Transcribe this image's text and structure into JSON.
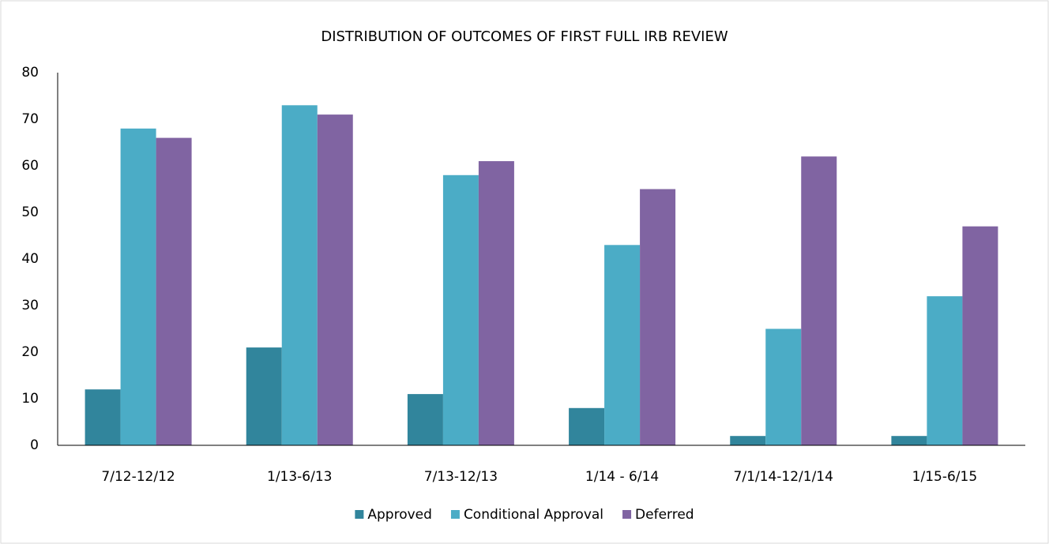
{
  "chart_data": {
    "type": "bar",
    "title": "DISTRIBUTION OF OUTCOMES OF FIRST FULL IRB REVIEW",
    "categories": [
      "7/12-12/12",
      "1/13-6/13",
      "7/13-12/13",
      "1/14 - 6/14",
      "7/1/14-12/1/14",
      "1/15-6/15"
    ],
    "series": [
      {
        "name": "Approved",
        "color": "#31859c",
        "values": [
          12,
          21,
          11,
          8,
          2,
          2
        ]
      },
      {
        "name": "Conditional Approval",
        "color": "#4bacc6",
        "values": [
          68,
          73,
          58,
          43,
          25,
          32
        ]
      },
      {
        "name": "Deferred",
        "color": "#8064a2",
        "values": [
          66,
          71,
          61,
          55,
          62,
          47
        ]
      }
    ],
    "ylim": [
      0,
      80
    ],
    "yticks": [
      0,
      10,
      20,
      30,
      40,
      50,
      60,
      70,
      80
    ],
    "grid": false,
    "legend": "bottom"
  }
}
